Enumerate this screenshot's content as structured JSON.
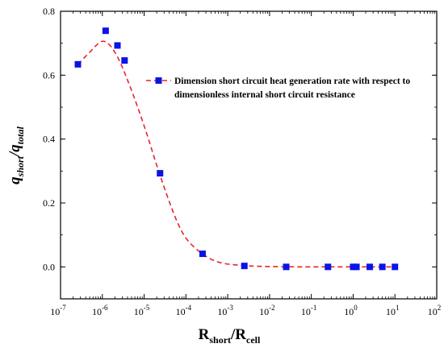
{
  "chart_data": {
    "type": "scatter",
    "xscale": "log",
    "xlim": [
      1e-07,
      100
    ],
    "ylim": [
      -0.1,
      0.8
    ],
    "grid": false,
    "legend_position": "top-right",
    "xlabel": {
      "main": "R",
      "sub1": "short",
      "sep": "/R",
      "sub2": "cell"
    },
    "ylabel": {
      "main": "q",
      "sub1": "short",
      "sep": "/q",
      "sub2": "total"
    },
    "x_ticks": [
      {
        "value": 1e-07,
        "base": "10",
        "exp": "-7"
      },
      {
        "value": 1e-06,
        "base": "10",
        "exp": "-6"
      },
      {
        "value": 1e-05,
        "base": "10",
        "exp": "-5"
      },
      {
        "value": 0.0001,
        "base": "10",
        "exp": "-4"
      },
      {
        "value": 0.001,
        "base": "10",
        "exp": "-3"
      },
      {
        "value": 0.01,
        "base": "10",
        "exp": "-2"
      },
      {
        "value": 0.1,
        "base": "10",
        "exp": "-1"
      },
      {
        "value": 1,
        "base": "10",
        "exp": "0"
      },
      {
        "value": 10,
        "base": "10",
        "exp": "1"
      },
      {
        "value": 100,
        "base": "10",
        "exp": "2"
      }
    ],
    "y_ticks": [
      {
        "value": 0.0,
        "label": "0.0"
      },
      {
        "value": 0.2,
        "label": "0.2"
      },
      {
        "value": 0.4,
        "label": "0.4"
      },
      {
        "value": 0.6,
        "label": "0.6"
      },
      {
        "value": 0.8,
        "label": "0.8"
      }
    ],
    "series": [
      {
        "name": "Dimension short circuit heat generation rate with respect to dimensionless internal short circuit resistance",
        "legend_lines": [
          "Dimension short circuit heat generation rate with respect to",
          "dimensionless internal short circuit resistance"
        ],
        "marker_color": "#0a14e6",
        "line_color": "#e8242c",
        "points": [
          [
            2.6e-07,
            0.634
          ],
          [
            1.2e-06,
            0.739
          ],
          [
            2.3e-06,
            0.693
          ],
          [
            3.4e-06,
            0.646
          ],
          [
            2.4e-05,
            0.293
          ],
          [
            0.00025,
            0.041
          ],
          [
            0.0025,
            0.003
          ],
          [
            0.025,
            0.0
          ],
          [
            0.25,
            0.0
          ],
          [
            1.0,
            0.0
          ],
          [
            1.2,
            0.0
          ],
          [
            2.5,
            0.0
          ],
          [
            5.0,
            0.0
          ],
          [
            10,
            0.0
          ]
        ],
        "fit_curve": [
          [
            2.6e-07,
            0.634
          ],
          [
            5e-07,
            0.672
          ],
          [
            8e-07,
            0.699
          ],
          [
            1.1e-06,
            0.706
          ],
          [
            1.6e-06,
            0.69
          ],
          [
            2.5e-06,
            0.648
          ],
          [
            4e-06,
            0.585
          ],
          [
            7e-06,
            0.5
          ],
          [
            1.2e-05,
            0.41
          ],
          [
            2e-05,
            0.318
          ],
          [
            3.5e-05,
            0.225
          ],
          [
            6e-05,
            0.145
          ],
          [
            0.0001,
            0.09
          ],
          [
            0.0002,
            0.05
          ],
          [
            0.0004,
            0.024
          ],
          [
            0.0008,
            0.011
          ],
          [
            0.002,
            0.005
          ],
          [
            0.005,
            0.002
          ],
          [
            0.02,
            0.0005
          ],
          [
            0.1,
            0.0
          ],
          [
            1,
            0.0
          ],
          [
            10,
            0.0
          ]
        ]
      }
    ]
  }
}
